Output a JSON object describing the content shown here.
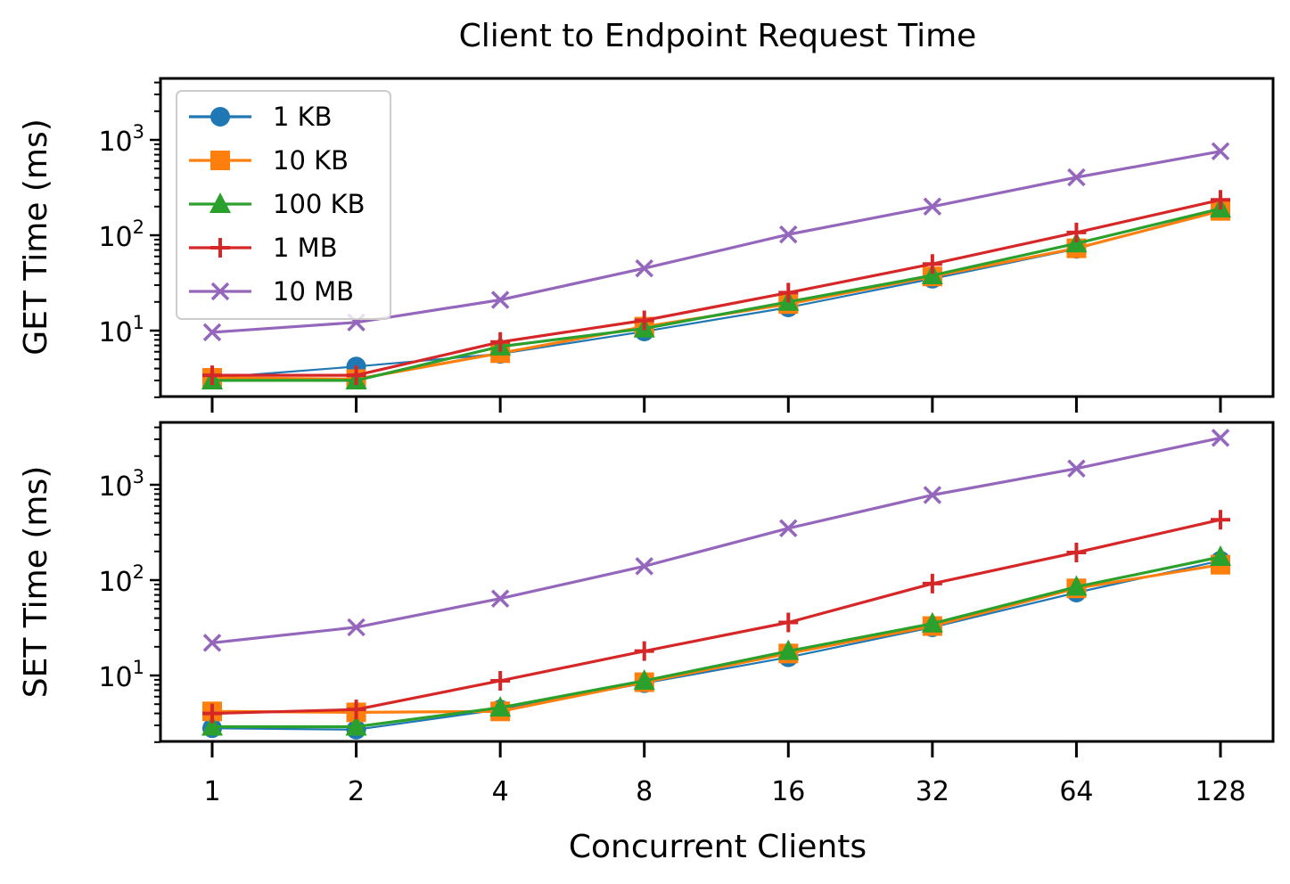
{
  "figure_title": "Client to Endpoint Request Time",
  "xlabel": "Concurrent Clients",
  "x_ticks": [
    "1",
    "2",
    "4",
    "8",
    "16",
    "32",
    "64",
    "128"
  ],
  "y_tick_exponents": [
    "1",
    "2",
    "3"
  ],
  "legend": {
    "placement": "upper-left of top panel",
    "entries": [
      {
        "label": "1 KB",
        "color": "#1f77b4",
        "marker": "circle"
      },
      {
        "label": "10 KB",
        "color": "#ff7f0e",
        "marker": "square"
      },
      {
        "label": "100 KB",
        "color": "#2ca02c",
        "marker": "triangle"
      },
      {
        "label": "1 MB",
        "color": "#d62728",
        "marker": "plus"
      },
      {
        "label": "10 MB",
        "color": "#9467bd",
        "marker": "x"
      }
    ]
  },
  "chart_data": [
    {
      "type": "line",
      "title": "Client to Endpoint Request Time",
      "xlabel": "",
      "ylabel": "GET Time (ms)",
      "xscale": "log2",
      "yscale": "log",
      "x": [
        1,
        2,
        4,
        8,
        16,
        32,
        64,
        128
      ],
      "ylim": [
        2,
        4300
      ],
      "series": [
        {
          "name": "1 KB",
          "values": [
            3.2,
            4.2,
            5.7,
            9.8,
            17.5,
            35,
            72,
            185
          ]
        },
        {
          "name": "10 KB",
          "values": [
            3.2,
            3.1,
            5.8,
            11.0,
            19,
            37,
            73,
            180
          ]
        },
        {
          "name": "100 KB",
          "values": [
            3.0,
            3.0,
            6.8,
            10.5,
            20,
            38,
            82,
            190
          ]
        },
        {
          "name": "1 MB",
          "values": [
            3.4,
            3.4,
            7.6,
            12.8,
            25,
            50,
            107,
            235
          ]
        },
        {
          "name": "10 MB",
          "values": [
            9.6,
            12.2,
            21,
            45,
            102,
            200,
            405,
            760
          ]
        }
      ]
    },
    {
      "type": "line",
      "xlabel": "Concurrent Clients",
      "ylabel": "SET Time (ms)",
      "xscale": "log2",
      "yscale": "log",
      "x": [
        1,
        2,
        4,
        8,
        16,
        32,
        64,
        128
      ],
      "ylim": [
        2,
        4300
      ],
      "series": [
        {
          "name": "1 KB",
          "values": [
            2.8,
            2.7,
            4.4,
            8.3,
            15.5,
            32,
            74,
            160
          ]
        },
        {
          "name": "10 KB",
          "values": [
            4.2,
            4.1,
            4.2,
            8.5,
            17,
            33,
            82,
            145
          ]
        },
        {
          "name": "100 KB",
          "values": [
            2.9,
            2.9,
            4.6,
            8.8,
            18,
            35,
            85,
            175
          ]
        },
        {
          "name": "1 MB",
          "values": [
            4.0,
            4.4,
            8.8,
            18,
            36,
            92,
            195,
            430
          ]
        },
        {
          "name": "10 MB",
          "values": [
            22,
            32,
            64,
            140,
            350,
            780,
            1480,
            3100
          ]
        }
      ]
    }
  ]
}
